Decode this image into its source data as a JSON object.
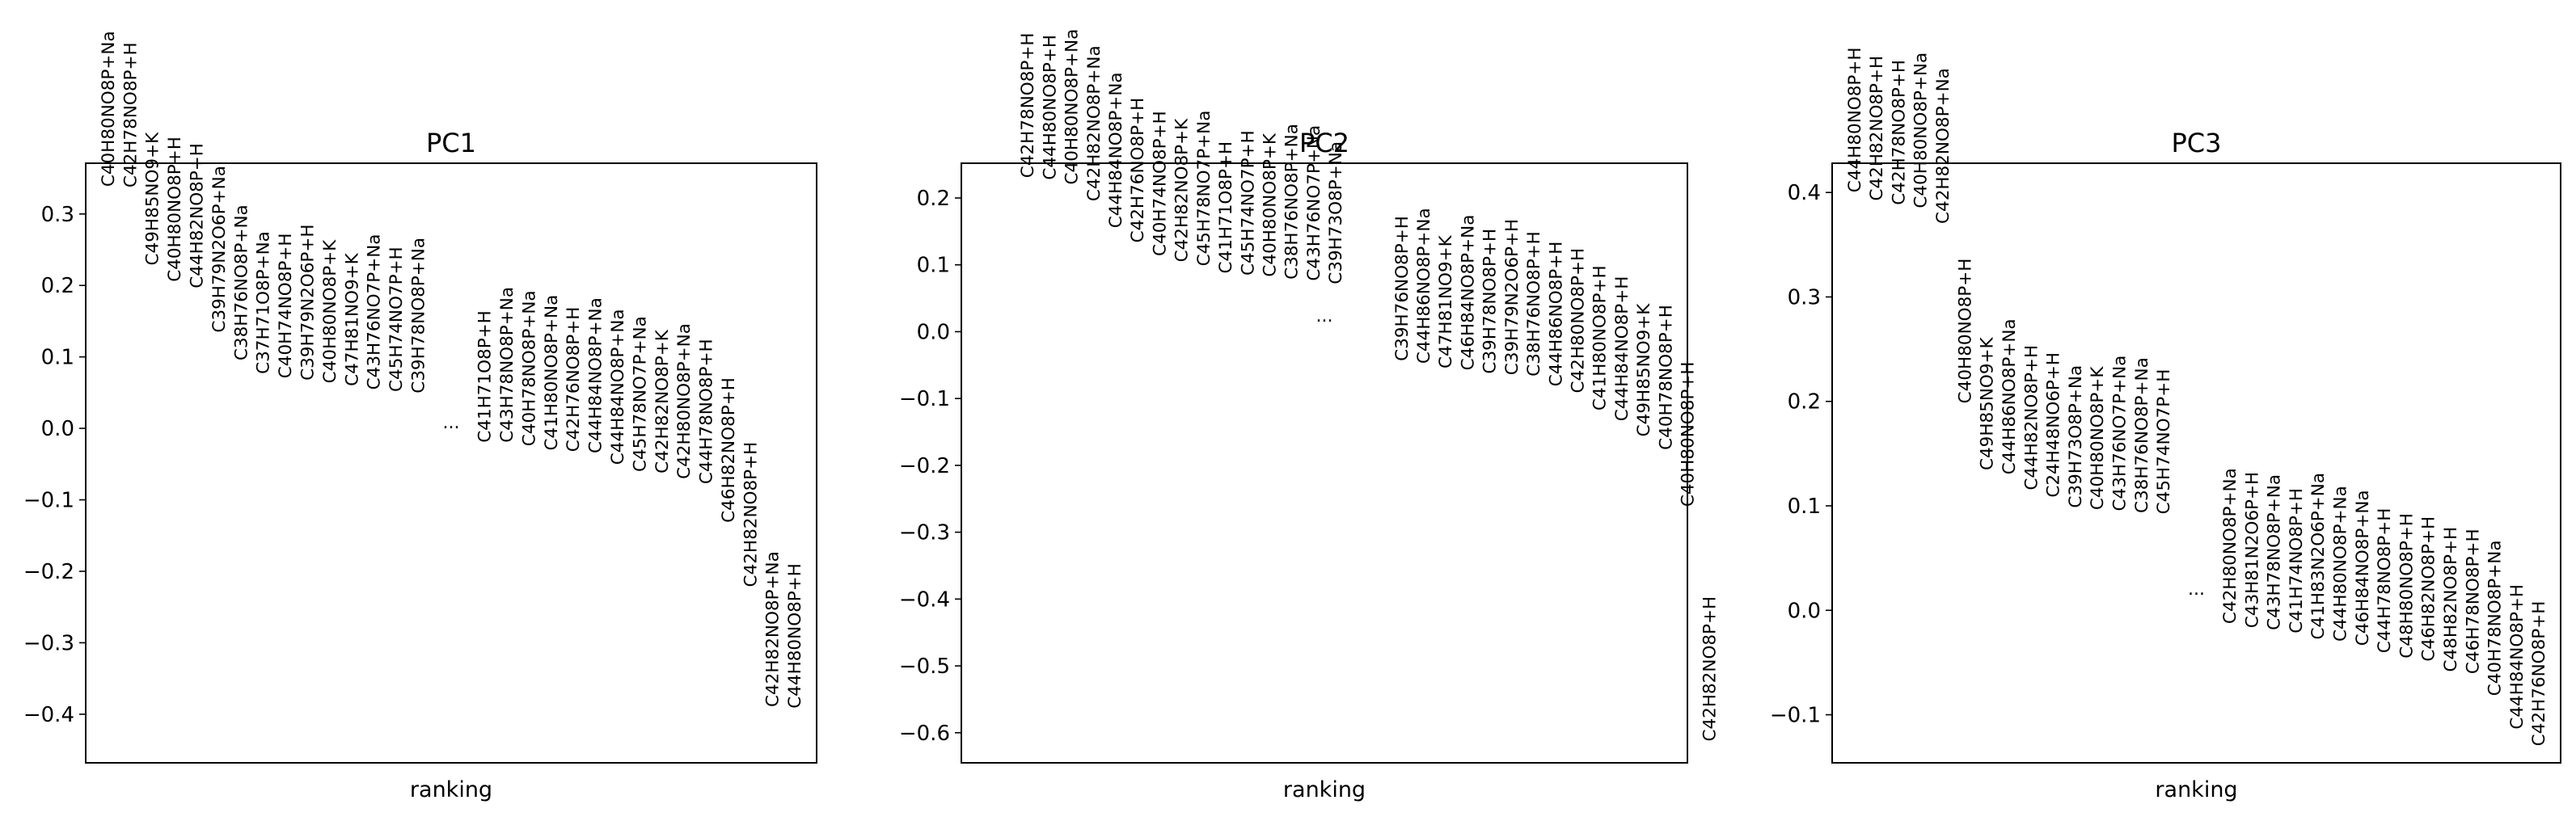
{
  "chart_data": [
    {
      "type": "scatter",
      "title": "PC1",
      "xlabel": "ranking",
      "ylabel": "",
      "ylim": [
        -0.468,
        0.371
      ],
      "yticks": [
        -0.4,
        -0.3,
        -0.2,
        -0.1,
        0.0,
        0.1,
        0.2,
        0.3
      ],
      "ytick_labels": [
        "−0.4",
        "−0.3",
        "−0.2",
        "−0.1",
        "0.0",
        "0.1",
        "0.2",
        "0.3"
      ],
      "xlim": [
        0,
        33
      ],
      "ellipsis": {
        "label": "...",
        "x": 16.5,
        "value": 0.0
      },
      "points": [
        {
          "rank": 1,
          "label": "C40H80NO8P+Na",
          "value": 0.338
        },
        {
          "rank": 2,
          "label": "C42H78NO8P+H",
          "value": 0.337
        },
        {
          "rank": 3,
          "label": "C49H85NO9+K",
          "value": 0.228
        },
        {
          "rank": 4,
          "label": "C40H80NO8P+H",
          "value": 0.205
        },
        {
          "rank": 5,
          "label": "C44H82NO8P+H",
          "value": 0.196
        },
        {
          "rank": 6,
          "label": "C39H79N2O6P+Na",
          "value": 0.134
        },
        {
          "rank": 7,
          "label": "C38H76NO8P+Na",
          "value": 0.095
        },
        {
          "rank": 8,
          "label": "C37H71O8P+Na",
          "value": 0.076
        },
        {
          "rank": 9,
          "label": "C40H74NO8P+H",
          "value": 0.07
        },
        {
          "rank": 10,
          "label": "C39H79N2O6P+H",
          "value": 0.067
        },
        {
          "rank": 11,
          "label": "C40H80NO8P+K",
          "value": 0.063
        },
        {
          "rank": 12,
          "label": "C47H81NO9+K",
          "value": 0.059
        },
        {
          "rank": 13,
          "label": "C43H76NO7P+Na",
          "value": 0.054
        },
        {
          "rank": 14,
          "label": "C45H74NO7P+H",
          "value": 0.051
        },
        {
          "rank": 15,
          "label": "C39H78NO8P+Na",
          "value": 0.049
        },
        {
          "rank": 18,
          "label": "C41H71O8P+H",
          "value": -0.02
        },
        {
          "rank": 19,
          "label": "C43H78NO8P+Na",
          "value": -0.02
        },
        {
          "rank": 20,
          "label": "C40H78NO8P+Na",
          "value": -0.025
        },
        {
          "rank": 21,
          "label": "C41H80NO8P+Na",
          "value": -0.031
        },
        {
          "rank": 22,
          "label": "C42H76NO8P+H",
          "value": -0.033
        },
        {
          "rank": 23,
          "label": "C44H84NO8P+Na",
          "value": -0.035
        },
        {
          "rank": 24,
          "label": "C44H84NO8P+Na",
          "value": -0.051
        },
        {
          "rank": 25,
          "label": "C45H78NO7P+Na",
          "value": -0.061
        },
        {
          "rank": 26,
          "label": "C42H82NO8P+K",
          "value": -0.063
        },
        {
          "rank": 27,
          "label": "C42H80NO8P+Na",
          "value": -0.071
        },
        {
          "rank": 28,
          "label": "C44H78NO8P+H",
          "value": -0.078
        },
        {
          "rank": 29,
          "label": "C46H82NO8P+H",
          "value": -0.132
        },
        {
          "rank": 30,
          "label": "C42H82NO8P+H",
          "value": -0.222
        },
        {
          "rank": 31,
          "label": "C42H82NO8P+Na",
          "value": -0.39
        },
        {
          "rank": 32,
          "label": "C44H80NO8P+H",
          "value": -0.392
        }
      ]
    },
    {
      "type": "scatter",
      "title": "PC2",
      "xlabel": "ranking",
      "ylabel": "",
      "ylim": [
        -0.645,
        0.252
      ],
      "yticks": [
        -0.6,
        -0.5,
        -0.4,
        -0.3,
        -0.2,
        -0.1,
        0.0,
        0.1,
        0.2
      ],
      "ytick_labels": [
        "−0.6",
        "−0.5",
        "−0.4",
        "−0.3",
        "−0.2",
        "−0.1",
        "0.0",
        "0.1",
        "0.2"
      ],
      "xlim": [
        0,
        33
      ],
      "ellipsis": {
        "label": "...",
        "x": 16.5,
        "value": 0.015
      },
      "points": [
        {
          "rank": 3,
          "label": "C42H78NO8P+H",
          "value": 0.23
        },
        {
          "rank": 4,
          "label": "C44H80NO8P+H",
          "value": 0.227
        },
        {
          "rank": 5,
          "label": "C40H80NO8P+Na",
          "value": 0.22
        },
        {
          "rank": 6,
          "label": "C42H82NO8P+Na",
          "value": 0.195
        },
        {
          "rank": 7,
          "label": "C44H84NO8P+Na",
          "value": 0.155
        },
        {
          "rank": 8,
          "label": "C42H76NO8P+H",
          "value": 0.133
        },
        {
          "rank": 9,
          "label": "C40H74NO8P+H",
          "value": 0.113
        },
        {
          "rank": 10,
          "label": "C42H82NO8P+K",
          "value": 0.104
        },
        {
          "rank": 11,
          "label": "C45H78NO7P+Na",
          "value": 0.098
        },
        {
          "rank": 12,
          "label": "C41H71O8P+H",
          "value": 0.087
        },
        {
          "rank": 13,
          "label": "C45H74NO7P+H",
          "value": 0.084
        },
        {
          "rank": 14,
          "label": "C40H80NO8P+K",
          "value": 0.082
        },
        {
          "rank": 15,
          "label": "C38H76NO8P+Na",
          "value": 0.078
        },
        {
          "rank": 16,
          "label": "C43H76NO7P+Na",
          "value": 0.076
        },
        {
          "rank": 17,
          "label": "C39H73O8P+Na",
          "value": 0.071
        },
        {
          "rank": 20,
          "label": "C39H76NO8P+H",
          "value": -0.044
        },
        {
          "rank": 21,
          "label": "C44H86NO8P+Na",
          "value": -0.048
        },
        {
          "rank": 22,
          "label": "C47H81NO9+K",
          "value": -0.055
        },
        {
          "rank": 23,
          "label": "C46H84NO8P+Na",
          "value": -0.058
        },
        {
          "rank": 24,
          "label": "C39H78NO8P+H",
          "value": -0.063
        },
        {
          "rank": 25,
          "label": "C39H79N2O6P+H",
          "value": -0.065
        },
        {
          "rank": 26,
          "label": "C38H76NO8P+H",
          "value": -0.067
        },
        {
          "rank": 27,
          "label": "C44H86NO8P+H",
          "value": -0.082
        },
        {
          "rank": 28,
          "label": "C42H80NO8P+H",
          "value": -0.092
        },
        {
          "rank": 29,
          "label": "C41H80NO8P+H",
          "value": -0.118
        },
        {
          "rank": 30,
          "label": "C44H84NO8P+H",
          "value": -0.134
        },
        {
          "rank": 31,
          "label": "C49H85NO9+K",
          "value": -0.157
        },
        {
          "rank": 32,
          "label": "C40H78NO8P+H",
          "value": -0.177
        },
        {
          "rank": 33,
          "label": "C40H80NO8P+H",
          "value": -0.262
        },
        {
          "rank": 34,
          "label": "C42H82NO8P+H",
          "value": -0.613
        }
      ]
    },
    {
      "type": "scatter",
      "title": "PC3",
      "xlabel": "ranking",
      "ylabel": "",
      "ylim": [
        -0.146,
        0.428
      ],
      "yticks": [
        -0.1,
        0.0,
        0.1,
        0.2,
        0.3,
        0.4
      ],
      "ytick_labels": [
        "−0.1",
        "0.0",
        "0.1",
        "0.2",
        "0.3",
        "0.4"
      ],
      "xlim": [
        0,
        33
      ],
      "ellipsis": {
        "label": "...",
        "x": 16.5,
        "value": 0.015
      },
      "points": [
        {
          "rank": 1,
          "label": "C44H80NO8P+H",
          "value": 0.4
        },
        {
          "rank": 2,
          "label": "C42H82NO8P+H",
          "value": 0.392
        },
        {
          "rank": 3,
          "label": "C42H78NO8P+H",
          "value": 0.388
        },
        {
          "rank": 4,
          "label": "C40H80NO8P+Na",
          "value": 0.385
        },
        {
          "rank": 5,
          "label": "C42H82NO8P+Na",
          "value": 0.37
        },
        {
          "rank": 6,
          "label": "C40H80NO8P+H",
          "value": 0.198
        },
        {
          "rank": 7,
          "label": "C49H85NO9+K",
          "value": 0.134
        },
        {
          "rank": 8,
          "label": "C44H86NO8P+Na",
          "value": 0.13
        },
        {
          "rank": 9,
          "label": "C44H82NO8P+H",
          "value": 0.115
        },
        {
          "rank": 10,
          "label": "C24H48NO6P+H",
          "value": 0.108
        },
        {
          "rank": 11,
          "label": "C39H73O8P+Na",
          "value": 0.098
        },
        {
          "rank": 12,
          "label": "C40H80NO8P+K",
          "value": 0.096
        },
        {
          "rank": 13,
          "label": "C43H76NO7P+Na",
          "value": 0.095
        },
        {
          "rank": 14,
          "label": "C38H76NO8P+Na",
          "value": 0.093
        },
        {
          "rank": 15,
          "label": "C45H74NO7P+H",
          "value": 0.092
        },
        {
          "rank": 18,
          "label": "C42H80NO8P+Na",
          "value": -0.013
        },
        {
          "rank": 19,
          "label": "C43H81N2O6P+H",
          "value": -0.017
        },
        {
          "rank": 20,
          "label": "C43H78NO8P+Na",
          "value": -0.019
        },
        {
          "rank": 21,
          "label": "C41H74NO8P+H",
          "value": -0.022
        },
        {
          "rank": 22,
          "label": "C41H83N2O6P+Na",
          "value": -0.028
        },
        {
          "rank": 23,
          "label": "C44H80NO8P+Na",
          "value": -0.03
        },
        {
          "rank": 24,
          "label": "C46H84NO8P+Na",
          "value": -0.034
        },
        {
          "rank": 25,
          "label": "C44H78NO8P+H",
          "value": -0.041
        },
        {
          "rank": 26,
          "label": "C48H80NO8P+H",
          "value": -0.046
        },
        {
          "rank": 27,
          "label": "C46H82NO8P+H",
          "value": -0.049
        },
        {
          "rank": 28,
          "label": "C48H82NO8P+H",
          "value": -0.059
        },
        {
          "rank": 29,
          "label": "C46H78NO8P+H",
          "value": -0.061
        },
        {
          "rank": 30,
          "label": "C40H78NO8P+Na",
          "value": -0.082
        },
        {
          "rank": 31,
          "label": "C44H84NO8P+H",
          "value": -0.114
        },
        {
          "rank": 32,
          "label": "C42H76NO8P+H",
          "value": -0.13
        }
      ]
    }
  ]
}
